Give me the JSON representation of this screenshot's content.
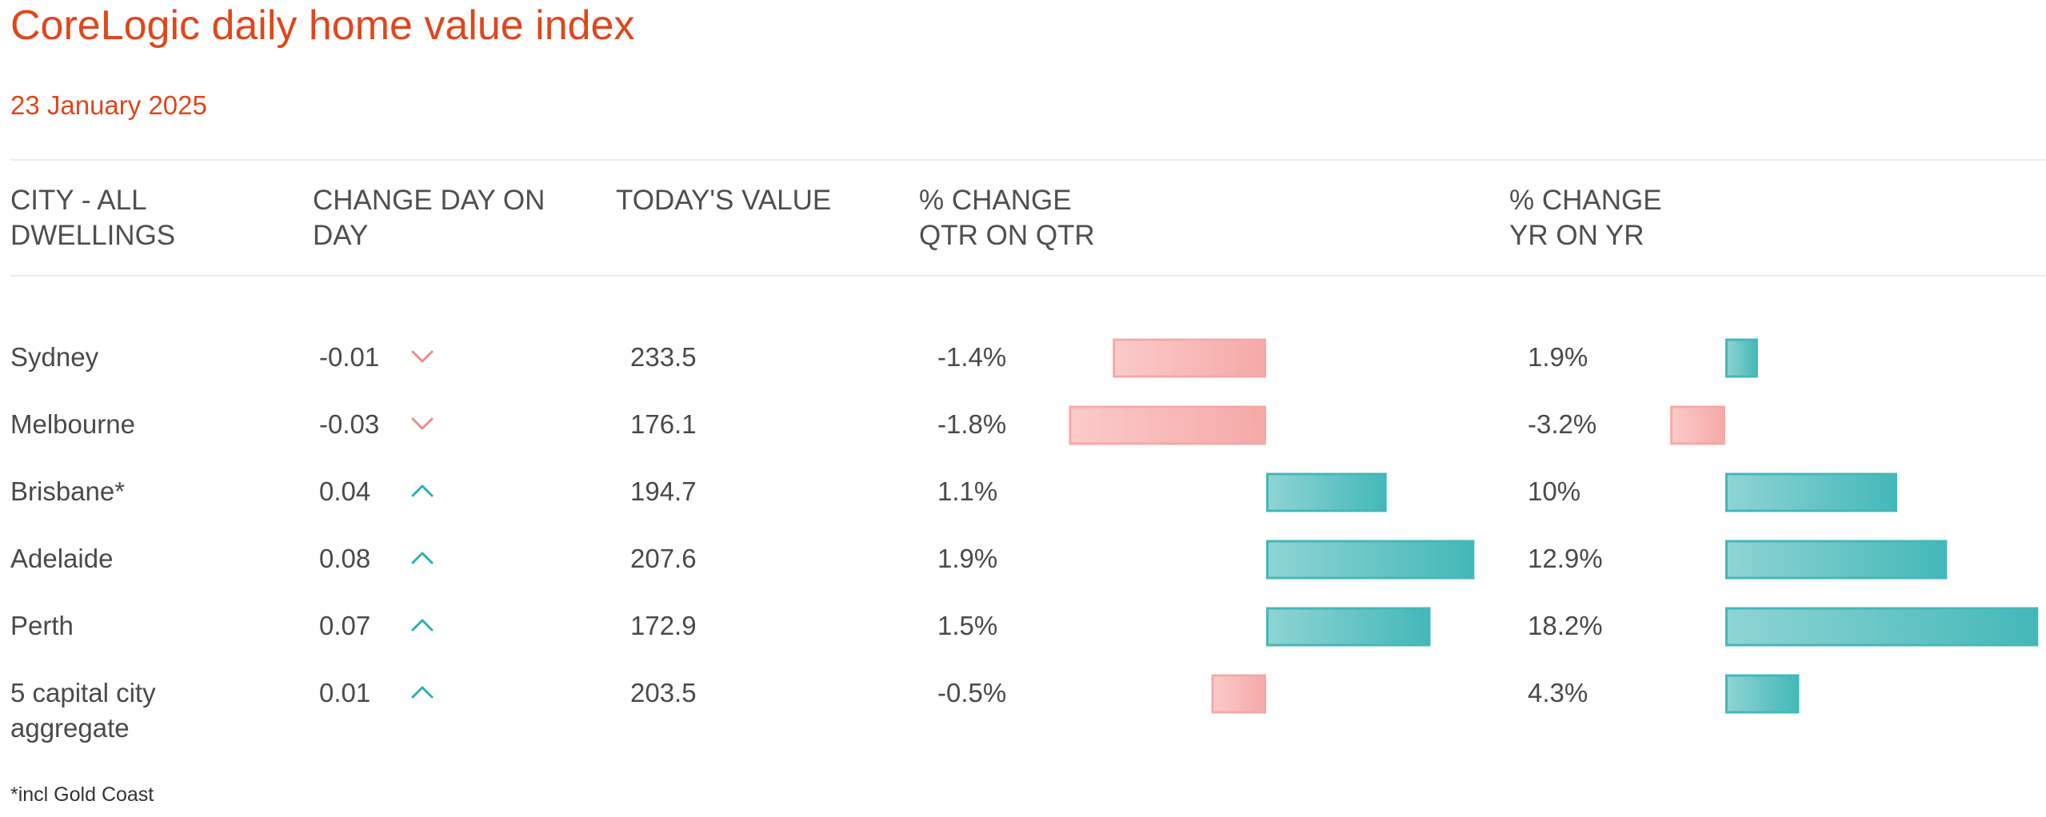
{
  "title": "CoreLogic daily home value index",
  "date": "23 January 2025",
  "footnote": "*incl Gold Coast",
  "colors": {
    "accent": "#e0461b",
    "positive": "#44b8b8",
    "positive_light": "#8fd4d4",
    "negative": "#f5a9a7",
    "negative_light": "#fccaca",
    "arrow_up": "#2bb0b0",
    "arrow_down": "#ee8b88"
  },
  "headers": {
    "city": [
      "CITY - ALL",
      "DWELLINGS"
    ],
    "dod": [
      "CHANGE DAY ON",
      "DAY"
    ],
    "value": [
      "TODAY'S VALUE"
    ],
    "qtr": [
      "% CHANGE",
      "QTR ON QTR"
    ],
    "yr": [
      "% CHANGE",
      "YR ON YR"
    ]
  },
  "chart_data": {
    "type": "table",
    "columns": [
      "CITY - ALL DWELLINGS",
      "CHANGE DAY ON DAY",
      "TODAY'S VALUE",
      "% CHANGE QTR ON QTR",
      "% CHANGE YR ON YR"
    ],
    "rows": [
      {
        "city": [
          "Sydney"
        ],
        "dod": "-0.01",
        "direction": "down",
        "value": "233.5",
        "qtr_label": "-1.4%",
        "qtr": -1.4,
        "yr_label": "1.9%",
        "yr": 1.9
      },
      {
        "city": [
          "Melbourne"
        ],
        "dod": "-0.03",
        "direction": "down",
        "value": "176.1",
        "qtr_label": "-1.8%",
        "qtr": -1.8,
        "yr_label": "-3.2%",
        "yr": -3.2
      },
      {
        "city": [
          "Brisbane*"
        ],
        "dod": "0.04",
        "direction": "up",
        "value": "194.7",
        "qtr_label": "1.1%",
        "qtr": 1.1,
        "yr_label": "10%",
        "yr": 10
      },
      {
        "city": [
          "Adelaide"
        ],
        "dod": "0.08",
        "direction": "up",
        "value": "207.6",
        "qtr_label": "1.9%",
        "qtr": 1.9,
        "yr_label": "12.9%",
        "yr": 12.9
      },
      {
        "city": [
          "Perth"
        ],
        "dod": "0.07",
        "direction": "up",
        "value": "172.9",
        "qtr_label": "1.5%",
        "qtr": 1.5,
        "yr_label": "18.2%",
        "yr": 18.2
      },
      {
        "city": [
          "5 capital city",
          "aggregate"
        ],
        "dod": "0.01",
        "direction": "up",
        "value": "203.5",
        "qtr_label": "-0.5%",
        "qtr": -0.5,
        "yr_label": "4.3%",
        "yr": 4.3
      }
    ]
  }
}
